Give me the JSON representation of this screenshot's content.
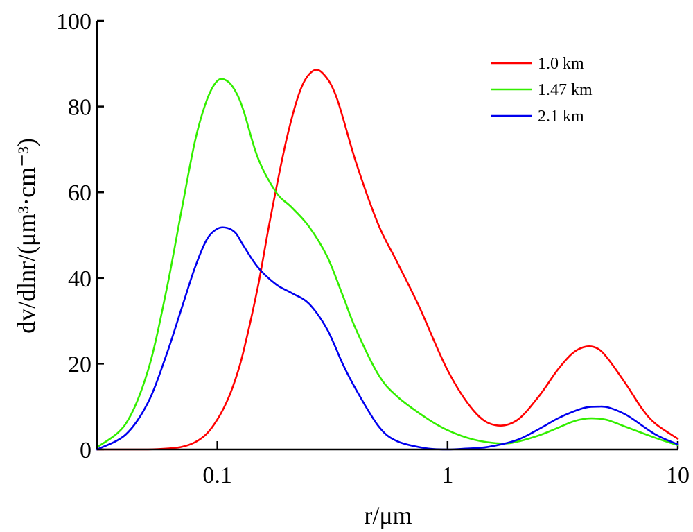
{
  "chart_data": {
    "type": "line",
    "xscale": "log",
    "xlim": [
      0.03,
      10
    ],
    "ylim": [
      0,
      100
    ],
    "xticks": [
      {
        "value": 0.1,
        "label": "0.1"
      },
      {
        "value": 1,
        "label": "1"
      },
      {
        "value": 10,
        "label": "10"
      }
    ],
    "yticks": [
      {
        "value": 0,
        "label": "0"
      },
      {
        "value": 20,
        "label": "20"
      },
      {
        "value": 40,
        "label": "40"
      },
      {
        "value": 60,
        "label": "60"
      },
      {
        "value": 80,
        "label": "80"
      },
      {
        "value": 100,
        "label": "100"
      }
    ],
    "xlabel": "r/μm",
    "ylabel": "dv/dlnr/(μm³·cm⁻³)",
    "legend_position": "top-right",
    "grid": false,
    "series": [
      {
        "name": "1.0 km",
        "color": "#ff0000",
        "x": [
          0.03,
          0.04,
          0.05,
          0.06,
          0.07,
          0.08,
          0.09,
          0.1,
          0.11,
          0.12,
          0.13,
          0.15,
          0.17,
          0.2,
          0.23,
          0.26,
          0.29,
          0.33,
          0.4,
          0.5,
          0.6,
          0.75,
          1.0,
          1.3,
          1.6,
          2.0,
          2.5,
          3.0,
          3.5,
          4.0,
          4.5,
          5.0,
          6.0,
          7.0,
          8.0,
          10.0
        ],
        "y": [
          0,
          0,
          0,
          0.2,
          0.6,
          1.7,
          3.7,
          7,
          11.2,
          16.5,
          23,
          38,
          54,
          72.5,
          84,
          88.3,
          87.5,
          82,
          67,
          52.5,
          44,
          33.5,
          18.5,
          9,
          5.7,
          6.8,
          12.5,
          18.5,
          22.5,
          24,
          23.5,
          21,
          15,
          9.5,
          6,
          2.5
        ]
      },
      {
        "name": "1.47 km",
        "color": "#33ee00",
        "x": [
          0.03,
          0.04,
          0.05,
          0.06,
          0.07,
          0.08,
          0.09,
          0.1,
          0.11,
          0.12,
          0.13,
          0.15,
          0.18,
          0.21,
          0.25,
          0.3,
          0.35,
          0.4,
          0.5,
          0.6,
          0.8,
          1.0,
          1.3,
          1.7,
          2.0,
          2.5,
          3.0,
          3.5,
          4.0,
          4.5,
          5.0,
          6.0,
          8.0,
          10.0
        ],
        "y": [
          0.5,
          6,
          18.5,
          37,
          56,
          72,
          81.5,
          86,
          86,
          83.5,
          79,
          68,
          60,
          56.5,
          52,
          45,
          36,
          28,
          17.5,
          12.5,
          7.5,
          4.5,
          2.3,
          1.4,
          1.8,
          3.3,
          5,
          6.5,
          7.2,
          7.2,
          6.8,
          5.2,
          2.7,
          1
        ]
      },
      {
        "name": "2.1 km",
        "color": "#0000ee",
        "x": [
          0.03,
          0.04,
          0.05,
          0.06,
          0.07,
          0.08,
          0.09,
          0.1,
          0.11,
          0.12,
          0.13,
          0.15,
          0.18,
          0.21,
          0.25,
          0.3,
          0.35,
          0.4,
          0.5,
          0.6,
          0.8,
          1.0,
          1.2,
          1.5,
          2.0,
          2.5,
          3.0,
          3.5,
          4.0,
          4.5,
          5.0,
          6.0,
          8.0,
          10.0
        ],
        "y": [
          0,
          3.5,
          11,
          22,
          33,
          42.5,
          49,
          51.5,
          51.7,
          50.5,
          47.5,
          42.5,
          38.5,
          36.5,
          34,
          28,
          20,
          14,
          5.5,
          2,
          0.3,
          0,
          0.2,
          0.6,
          2.2,
          4.8,
          7.2,
          8.8,
          9.8,
          10,
          9.8,
          8,
          3.5,
          1.2
        ]
      }
    ]
  }
}
